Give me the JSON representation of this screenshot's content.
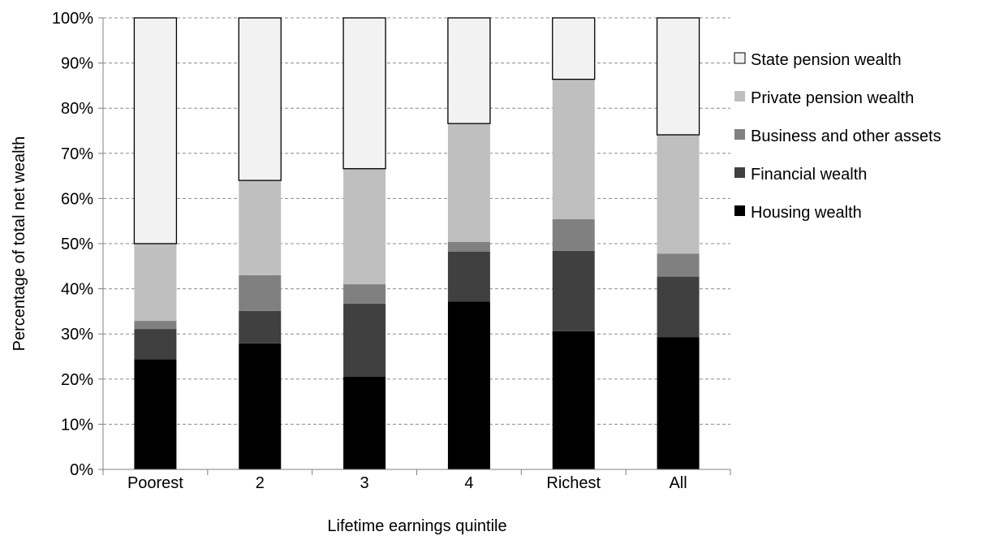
{
  "chart_data": {
    "type": "bar",
    "stacked": true,
    "categories": [
      "Poorest",
      "2",
      "3",
      "4",
      "Richest",
      "All"
    ],
    "xlabel": "Lifetime earnings quintile",
    "ylabel": "Percentage of total net wealth",
    "ylim": [
      0,
      100
    ],
    "yticks": [
      "0%",
      "10%",
      "20%",
      "30%",
      "40%",
      "50%",
      "60%",
      "70%",
      "80%",
      "90%",
      "100%"
    ],
    "grid": "horizontal dashed",
    "legend_position": "right",
    "series": [
      {
        "name": "Housing wealth",
        "color": "#000000",
        "values": [
          24.4,
          27.9,
          20.5,
          37.2,
          30.6,
          29.3
        ]
      },
      {
        "name": "Financial wealth",
        "color": "#404040",
        "values": [
          6.7,
          7.2,
          16.2,
          11.0,
          17.8,
          13.4
        ]
      },
      {
        "name": "Business and other assets",
        "color": "#808080",
        "values": [
          1.8,
          7.9,
          4.3,
          2.2,
          7.0,
          5.1
        ]
      },
      {
        "name": "Private pension wealth",
        "color": "#bfbfbf",
        "values": [
          17.1,
          21.0,
          25.6,
          26.2,
          31.0,
          26.3
        ]
      },
      {
        "name": "State pension wealth",
        "color": "#f2f2f2",
        "values": [
          50.0,
          36.0,
          33.4,
          23.4,
          13.6,
          25.9
        ]
      }
    ],
    "legend_order": [
      "State pension wealth",
      "Private pension wealth",
      "Business and other assets",
      "Financial wealth",
      "Housing wealth"
    ]
  }
}
